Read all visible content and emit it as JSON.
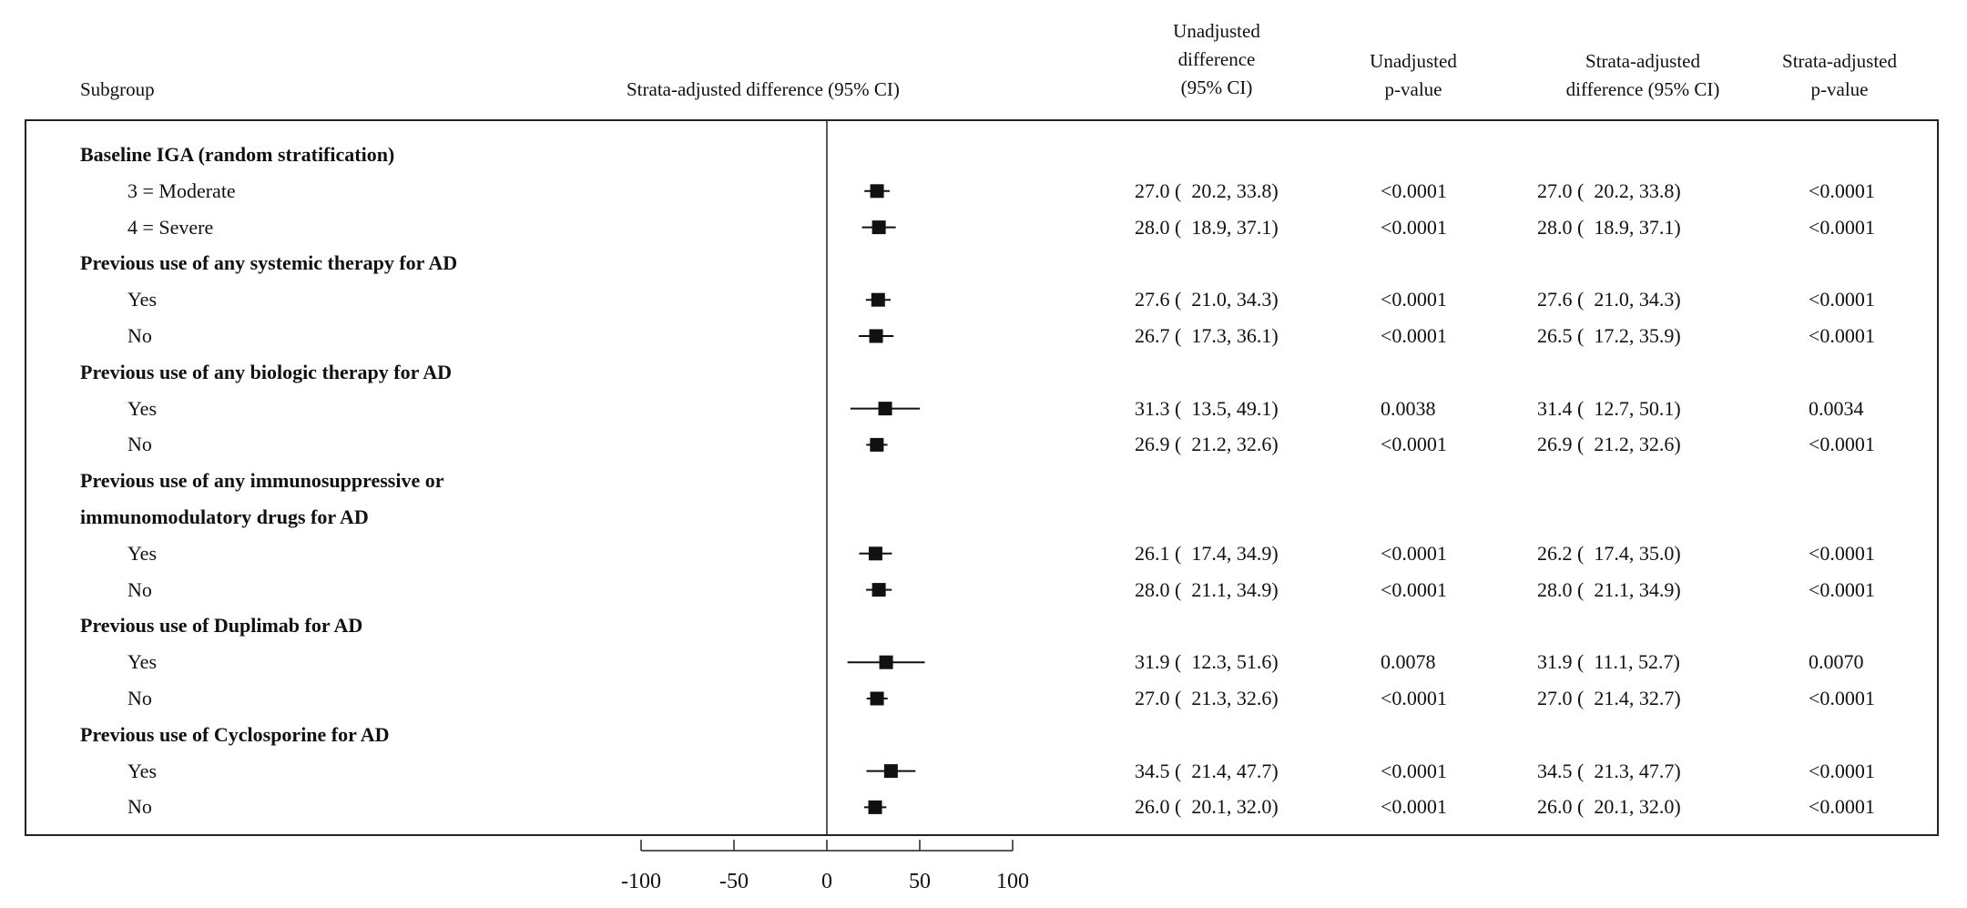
{
  "headers": {
    "subgroup": "Subgroup",
    "plot": "Strata-adjusted difference (95% CI)",
    "unadj_diff": "Unadjusted\ndifference\n(95% CI)",
    "unadj_p": "Unadjusted\np-value",
    "strata_diff": "Strata-adjusted\ndifference (95% CI)",
    "strata_p": "Strata-adjusted\np-value"
  },
  "rows": [
    {
      "kind": "group",
      "label": "Baseline IGA (random stratification)"
    },
    {
      "kind": "sub",
      "label": "3 = Moderate",
      "unadj_ci": "27.0 (  20.2, 33.8)",
      "unadj_p": "<0.0001",
      "strata_ci": "27.0 (  20.2, 33.8)",
      "strata_p": "<0.0001"
    },
    {
      "kind": "sub",
      "label": "4 = Severe",
      "unadj_ci": "28.0 (  18.9, 37.1)",
      "unadj_p": "<0.0001",
      "strata_ci": "28.0 (  18.9, 37.1)",
      "strata_p": "<0.0001"
    },
    {
      "kind": "group",
      "label": "Previous use of any systemic therapy for AD"
    },
    {
      "kind": "sub",
      "label": "Yes",
      "unadj_ci": "27.6 (  21.0, 34.3)",
      "unadj_p": "<0.0001",
      "strata_ci": "27.6 (  21.0, 34.3)",
      "strata_p": "<0.0001"
    },
    {
      "kind": "sub",
      "label": "No",
      "unadj_ci": "26.7 (  17.3, 36.1)",
      "unadj_p": "<0.0001",
      "strata_ci": "26.5 (  17.2, 35.9)",
      "strata_p": "<0.0001"
    },
    {
      "kind": "group",
      "label": "Previous use of any biologic therapy for AD"
    },
    {
      "kind": "sub",
      "label": "Yes",
      "unadj_ci": "31.3 (  13.5, 49.1)",
      "unadj_p": "0.0038",
      "strata_ci": "31.4 (  12.7, 50.1)",
      "strata_p": "0.0034"
    },
    {
      "kind": "sub",
      "label": "No",
      "unadj_ci": "26.9 (  21.2, 32.6)",
      "unadj_p": "<0.0001",
      "strata_ci": "26.9 (  21.2, 32.6)",
      "strata_p": "<0.0001"
    },
    {
      "kind": "group",
      "label": "Previous use of any immunosuppressive or"
    },
    {
      "kind": "group",
      "label": "immunomodulatory drugs for AD"
    },
    {
      "kind": "sub",
      "label": "Yes",
      "unadj_ci": "26.1 (  17.4, 34.9)",
      "unadj_p": "<0.0001",
      "strata_ci": "26.2 (  17.4, 35.0)",
      "strata_p": "<0.0001"
    },
    {
      "kind": "sub",
      "label": "No",
      "unadj_ci": "28.0 (  21.1, 34.9)",
      "unadj_p": "<0.0001",
      "strata_ci": "28.0 (  21.1, 34.9)",
      "strata_p": "<0.0001"
    },
    {
      "kind": "group",
      "label": "Previous use of Duplimab for AD"
    },
    {
      "kind": "sub",
      "label": "Yes",
      "unadj_ci": "31.9 (  12.3, 51.6)",
      "unadj_p": "0.0078",
      "strata_ci": "31.9 (  11.1, 52.7)",
      "strata_p": "0.0070"
    },
    {
      "kind": "sub",
      "label": "No",
      "unadj_ci": "27.0 (  21.3, 32.6)",
      "unadj_p": "<0.0001",
      "strata_ci": "27.0 (  21.4, 32.7)",
      "strata_p": "<0.0001"
    },
    {
      "kind": "group",
      "label": "Previous use of Cyclosporine for AD"
    },
    {
      "kind": "sub",
      "label": "Yes",
      "unadj_ci": "34.5 (  21.4, 47.7)",
      "unadj_p": "<0.0001",
      "strata_ci": "34.5 (  21.3, 47.7)",
      "strata_p": "<0.0001"
    },
    {
      "kind": "sub",
      "label": "No",
      "unadj_ci": "26.0 (  20.1, 32.0)",
      "unadj_p": "<0.0001",
      "strata_ci": "26.0 (  20.1, 32.0)",
      "strata_p": "<0.0001"
    }
  ],
  "chart_data": {
    "type": "scatter",
    "title": "",
    "xlabel": "Strata-adjusted difference (95% CI)",
    "ylabel": "",
    "xlim": [
      -100,
      100
    ],
    "xticks": [
      -100,
      -50,
      0,
      50,
      100
    ],
    "reference_line": 0,
    "grid": false,
    "categories": [
      "Baseline IGA: 3 = Moderate",
      "Baseline IGA: 4 = Severe",
      "Systemic therapy: Yes",
      "Systemic therapy: No",
      "Biologic therapy: Yes",
      "Biologic therapy: No",
      "Immunosuppressive/immunomodulatory: Yes",
      "Immunosuppressive/immunomodulatory: No",
      "Duplimab: Yes",
      "Duplimab: No",
      "Cyclosporine: Yes",
      "Cyclosporine: No"
    ],
    "estimate": [
      27.0,
      28.0,
      27.6,
      26.5,
      31.4,
      26.9,
      26.2,
      28.0,
      31.9,
      27.0,
      34.5,
      26.0
    ],
    "ci_lower": [
      20.2,
      18.9,
      21.0,
      17.2,
      12.7,
      21.2,
      17.4,
      21.1,
      11.1,
      21.4,
      21.3,
      20.1
    ],
    "ci_upper": [
      33.8,
      37.1,
      34.3,
      35.9,
      50.1,
      32.6,
      35.0,
      34.9,
      52.7,
      32.7,
      47.7,
      32.0
    ]
  }
}
